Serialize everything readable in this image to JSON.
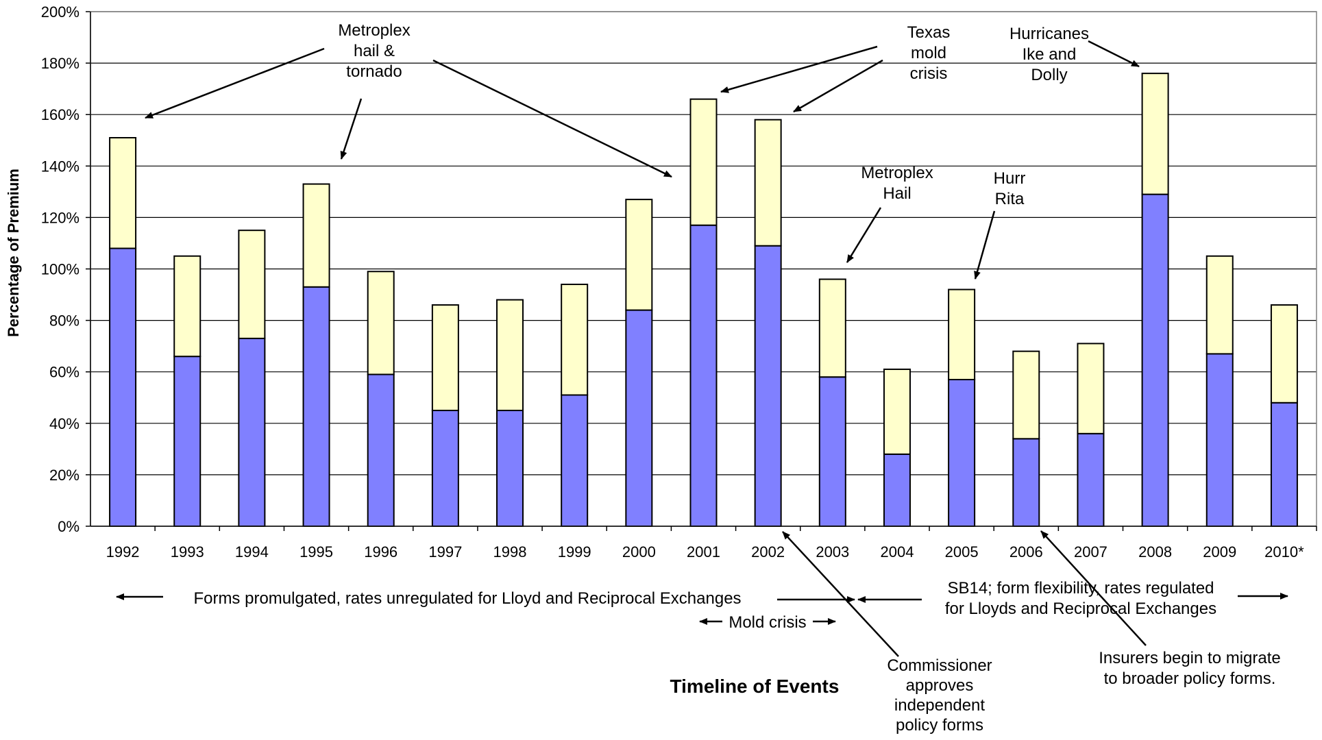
{
  "chart_data": {
    "type": "bar",
    "stacked": true,
    "ylabel": "Percentage of Premium",
    "xlabel": "Timeline of Events",
    "ylim": [
      0,
      200
    ],
    "yticks": [
      "0%",
      "20%",
      "40%",
      "60%",
      "80%",
      "100%",
      "120%",
      "140%",
      "160%",
      "180%",
      "200%"
    ],
    "grid": true,
    "categories": [
      "1992",
      "1993",
      "1994",
      "1995",
      "1996",
      "1997",
      "1998",
      "1999",
      "2000",
      "2001",
      "2002",
      "2003",
      "2004",
      "2005",
      "2006",
      "2007",
      "2008",
      "2009",
      "2010*"
    ],
    "series": [
      {
        "color": "#8080ff",
        "values": [
          108,
          66,
          73,
          93,
          59,
          45,
          45,
          51,
          84,
          117,
          109,
          58,
          28,
          57,
          34,
          36,
          129,
          67,
          48
        ]
      },
      {
        "color": "#ffffcc",
        "values": [
          43,
          39,
          42,
          40,
          40,
          41,
          43,
          43,
          43,
          49,
          49,
          38,
          33,
          35,
          34,
          35,
          47,
          38,
          38
        ]
      }
    ],
    "annotations": {
      "metroplex_hail_tornado": [
        "Metroplex",
        "hail &",
        "tornado"
      ],
      "texas_mold": [
        "Texas",
        "mold",
        "crisis"
      ],
      "hurricanes": [
        "Hurricanes",
        "Ike and",
        "Dolly"
      ],
      "metroplex_hail": [
        "Metroplex",
        "Hail"
      ],
      "hurr_rita": [
        "Hurr",
        "Rita"
      ],
      "forms_promulgated": "Forms promulgated, rates unregulated for Lloyd and Reciprocal Exchanges",
      "mold_crisis": "Mold crisis",
      "sb14": [
        "SB14; form flexibility, rates regulated",
        "for Lloyds and Reciprocal Exchanges"
      ],
      "commissioner": [
        "Commissioner",
        "approves",
        "independent",
        "policy forms"
      ],
      "insurers": [
        "Insurers begin to migrate",
        "to broader policy forms."
      ]
    }
  }
}
